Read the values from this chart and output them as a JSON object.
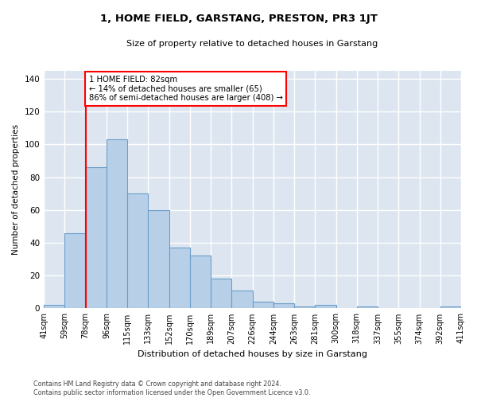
{
  "title": "1, HOME FIELD, GARSTANG, PRESTON, PR3 1JT",
  "subtitle": "Size of property relative to detached houses in Garstang",
  "xlabel": "Distribution of detached houses by size in Garstang",
  "ylabel": "Number of detached properties",
  "bar_color": "#b8cfe8",
  "bar_edge_color": "#6b9ec8",
  "background_color": "#dde6f0",
  "grid_color": "#ffffff",
  "bin_labels": [
    "41sqm",
    "59sqm",
    "78sqm",
    "96sqm",
    "115sqm",
    "133sqm",
    "152sqm",
    "170sqm",
    "189sqm",
    "207sqm",
    "226sqm",
    "244sqm",
    "263sqm",
    "281sqm",
    "300sqm",
    "318sqm",
    "337sqm",
    "355sqm",
    "374sqm",
    "392sqm",
    "411sqm"
  ],
  "values": [
    2,
    46,
    86,
    103,
    70,
    60,
    37,
    32,
    18,
    11,
    4,
    3,
    1,
    2,
    0,
    1,
    0,
    0,
    0,
    1
  ],
  "ylim": [
    0,
    145
  ],
  "yticks": [
    0,
    20,
    40,
    60,
    80,
    100,
    120,
    140
  ],
  "subject_bin_index": 2,
  "annotation_text": "1 HOME FIELD: 82sqm\n← 14% of detached houses are smaller (65)\n86% of semi-detached houses are larger (408) →",
  "footnote": "Contains HM Land Registry data © Crown copyright and database right 2024.\nContains public sector information licensed under the Open Government Licence v3.0."
}
